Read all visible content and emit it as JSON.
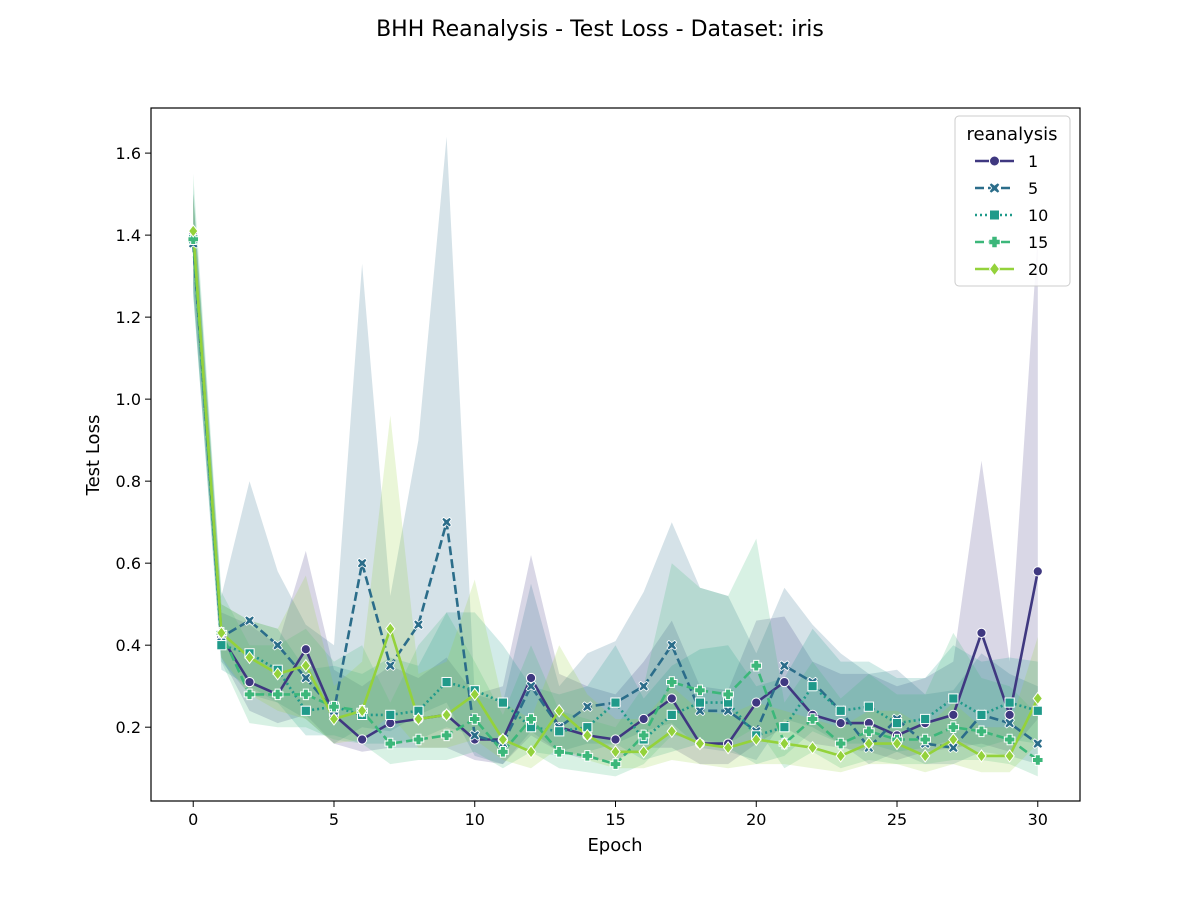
{
  "chart_data": {
    "type": "line",
    "title": "BHH Reanalysis - Test Loss - Dataset: iris",
    "xlabel": "Epoch",
    "ylabel": "Test Loss",
    "xlim": [
      -1.5,
      31.5
    ],
    "ylim": [
      0.02,
      1.71
    ],
    "xticks": [
      0,
      5,
      10,
      15,
      20,
      25,
      30
    ],
    "yticks": [
      0.2,
      0.4,
      0.6,
      0.8,
      1.0,
      1.2,
      1.4,
      1.6
    ],
    "ytick_labels": [
      "0.2",
      "0.4",
      "0.6",
      "0.8",
      "1.0",
      "1.2",
      "1.4",
      "1.6"
    ],
    "grid": false,
    "legend": {
      "title": "reanalysis",
      "position": "top-right"
    },
    "x": [
      0,
      1,
      2,
      3,
      4,
      5,
      6,
      7,
      8,
      9,
      10,
      11,
      12,
      13,
      14,
      15,
      16,
      17,
      18,
      19,
      20,
      21,
      22,
      23,
      24,
      25,
      26,
      27,
      28,
      29,
      30
    ],
    "series": [
      {
        "name": "1",
        "color": "#3f3880",
        "dash": "solid",
        "marker": "circle",
        "values": [
          1.4,
          0.42,
          0.31,
          0.28,
          0.39,
          0.23,
          0.17,
          0.21,
          0.22,
          0.23,
          0.17,
          0.17,
          0.32,
          0.2,
          0.18,
          0.17,
          0.22,
          0.27,
          0.16,
          0.16,
          0.26,
          0.31,
          0.23,
          0.21,
          0.21,
          0.18,
          0.21,
          0.23,
          0.43,
          0.23,
          0.58
        ],
        "upper": [
          1.5,
          0.48,
          0.45,
          0.4,
          0.63,
          0.34,
          0.3,
          0.35,
          0.32,
          0.37,
          0.28,
          0.3,
          0.62,
          0.33,
          0.3,
          0.28,
          0.36,
          0.46,
          0.3,
          0.29,
          0.46,
          0.47,
          0.36,
          0.33,
          0.33,
          0.3,
          0.32,
          0.36,
          0.85,
          0.36,
          1.4
        ],
        "lower": [
          1.28,
          0.37,
          0.24,
          0.21,
          0.23,
          0.16,
          0.14,
          0.15,
          0.15,
          0.15,
          0.12,
          0.11,
          0.18,
          0.14,
          0.12,
          0.12,
          0.15,
          0.15,
          0.11,
          0.11,
          0.16,
          0.2,
          0.16,
          0.15,
          0.14,
          0.12,
          0.14,
          0.15,
          0.16,
          0.14,
          0.22
        ]
      },
      {
        "name": "5",
        "color": "#2b6d8a",
        "dash": "dashed",
        "marker": "x",
        "values": [
          1.38,
          0.42,
          0.46,
          0.4,
          0.32,
          0.24,
          0.6,
          0.35,
          0.45,
          0.7,
          0.18,
          0.16,
          0.3,
          0.2,
          0.25,
          0.26,
          0.3,
          0.4,
          0.24,
          0.24,
          0.19,
          0.35,
          0.31,
          0.24,
          0.15,
          0.22,
          0.16,
          0.15,
          0.23,
          0.21,
          0.16
        ],
        "upper": [
          1.5,
          0.52,
          0.8,
          0.58,
          0.45,
          0.4,
          1.33,
          0.52,
          0.9,
          1.64,
          0.28,
          0.26,
          0.55,
          0.3,
          0.38,
          0.41,
          0.53,
          0.7,
          0.54,
          0.52,
          0.38,
          0.54,
          0.45,
          0.38,
          0.33,
          0.34,
          0.28,
          0.29,
          0.38,
          0.33,
          0.3
        ],
        "lower": [
          1.26,
          0.36,
          0.28,
          0.26,
          0.22,
          0.16,
          0.2,
          0.19,
          0.23,
          0.26,
          0.13,
          0.11,
          0.19,
          0.14,
          0.16,
          0.16,
          0.19,
          0.21,
          0.15,
          0.14,
          0.12,
          0.22,
          0.2,
          0.16,
          0.11,
          0.14,
          0.11,
          0.11,
          0.14,
          0.13,
          0.11
        ]
      },
      {
        "name": "10",
        "color": "#1f9a8a",
        "dash": "dotted",
        "marker": "square",
        "values": [
          1.39,
          0.4,
          0.38,
          0.34,
          0.24,
          0.25,
          0.23,
          0.23,
          0.24,
          0.31,
          0.29,
          0.26,
          0.2,
          0.19,
          0.2,
          0.26,
          0.17,
          0.23,
          0.26,
          0.26,
          0.18,
          0.2,
          0.3,
          0.24,
          0.25,
          0.21,
          0.22,
          0.27,
          0.23,
          0.26,
          0.24
        ],
        "upper": [
          1.52,
          0.5,
          0.46,
          0.44,
          0.34,
          0.35,
          0.33,
          0.37,
          0.35,
          0.48,
          0.48,
          0.4,
          0.3,
          0.28,
          0.3,
          0.4,
          0.27,
          0.35,
          0.39,
          0.4,
          0.3,
          0.32,
          0.44,
          0.36,
          0.36,
          0.32,
          0.32,
          0.4,
          0.36,
          0.37,
          0.36
        ],
        "lower": [
          1.26,
          0.34,
          0.3,
          0.26,
          0.18,
          0.18,
          0.16,
          0.16,
          0.17,
          0.2,
          0.18,
          0.17,
          0.14,
          0.13,
          0.14,
          0.16,
          0.12,
          0.14,
          0.16,
          0.15,
          0.11,
          0.13,
          0.19,
          0.16,
          0.16,
          0.14,
          0.15,
          0.17,
          0.15,
          0.17,
          0.16
        ]
      },
      {
        "name": "15",
        "color": "#3cb77a",
        "dash": "dashed",
        "marker": "plus",
        "values": [
          1.39,
          0.43,
          0.28,
          0.28,
          0.28,
          0.25,
          0.24,
          0.16,
          0.17,
          0.18,
          0.22,
          0.14,
          0.22,
          0.14,
          0.13,
          0.11,
          0.18,
          0.31,
          0.29,
          0.28,
          0.35,
          0.16,
          0.22,
          0.16,
          0.19,
          0.17,
          0.17,
          0.2,
          0.19,
          0.17,
          0.12
        ],
        "upper": [
          1.55,
          0.53,
          0.4,
          0.4,
          0.44,
          0.36,
          0.4,
          0.26,
          0.4,
          0.48,
          0.36,
          0.23,
          0.4,
          0.24,
          0.22,
          0.2,
          0.3,
          0.6,
          0.54,
          0.52,
          0.66,
          0.26,
          0.36,
          0.27,
          0.33,
          0.28,
          0.28,
          0.43,
          0.32,
          0.3,
          0.23
        ],
        "lower": [
          1.25,
          0.36,
          0.21,
          0.2,
          0.2,
          0.17,
          0.16,
          0.11,
          0.12,
          0.12,
          0.14,
          0.1,
          0.14,
          0.1,
          0.09,
          0.08,
          0.11,
          0.18,
          0.17,
          0.16,
          0.2,
          0.1,
          0.14,
          0.1,
          0.12,
          0.11,
          0.11,
          0.12,
          0.12,
          0.11,
          0.08
        ]
      },
      {
        "name": "20",
        "color": "#94d23b",
        "dash": "solid",
        "marker": "diamond",
        "values": [
          1.41,
          0.43,
          0.37,
          0.33,
          0.35,
          0.22,
          0.24,
          0.44,
          0.22,
          0.23,
          0.28,
          0.17,
          0.14,
          0.24,
          0.18,
          0.14,
          0.14,
          0.19,
          0.16,
          0.15,
          0.17,
          0.16,
          0.15,
          0.13,
          0.16,
          0.16,
          0.13,
          0.17,
          0.13,
          0.13,
          0.27
        ],
        "upper": [
          1.5,
          0.5,
          0.46,
          0.44,
          0.57,
          0.3,
          0.36,
          0.96,
          0.33,
          0.36,
          0.56,
          0.26,
          0.22,
          0.4,
          0.28,
          0.22,
          0.22,
          0.3,
          0.24,
          0.23,
          0.26,
          0.24,
          0.22,
          0.2,
          0.24,
          0.24,
          0.2,
          0.26,
          0.2,
          0.2,
          0.42
        ],
        "lower": [
          1.32,
          0.37,
          0.28,
          0.24,
          0.22,
          0.16,
          0.17,
          0.23,
          0.15,
          0.15,
          0.17,
          0.12,
          0.1,
          0.15,
          0.12,
          0.1,
          0.1,
          0.12,
          0.11,
          0.1,
          0.11,
          0.11,
          0.1,
          0.09,
          0.11,
          0.11,
          0.09,
          0.11,
          0.09,
          0.09,
          0.16
        ]
      }
    ]
  }
}
